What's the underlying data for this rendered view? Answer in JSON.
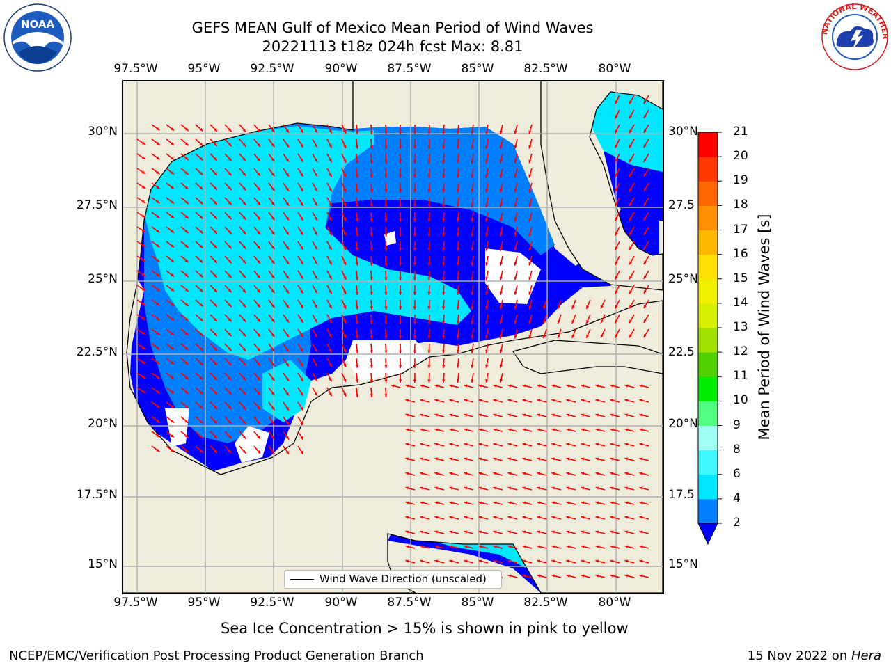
{
  "title": {
    "line1": "GEFS MEAN Gulf of Mexico Mean Period of Wind Waves",
    "line2": "20221113 t18z 024h fcst   Max: 8.81"
  },
  "map": {
    "lon_labels": [
      "97.5°W",
      "95°W",
      "92.5°W",
      "90°W",
      "87.5°W",
      "85°W",
      "82.5°W",
      "80°W"
    ],
    "lat_labels": [
      "30°N",
      "27.5°N",
      "25°N",
      "22.5°N",
      "20°N",
      "17.5°N",
      "15°N"
    ],
    "lat_labels_right": [
      "30°N",
      "27.5",
      "25°N",
      "22.5",
      "20°N",
      "17.5",
      "15°N"
    ],
    "lon_range": [
      -98,
      -78.3
    ],
    "lat_range": [
      14,
      31.7
    ],
    "land_color": "#efecdc",
    "grid_color": "#b0b0b0",
    "arrow_color": "#ff0000",
    "legend_label": "Wind Wave Direction (unscaled)"
  },
  "colorbar": {
    "label": "Mean Period of Wind Waves [s]",
    "ticks": [
      "2",
      "4",
      "6",
      "8",
      "9",
      "10",
      "11",
      "12",
      "13",
      "14",
      "15",
      "16",
      "17",
      "18",
      "19",
      "20",
      "21"
    ],
    "colors": [
      "#0000ff",
      "#0080ff",
      "#00e8ff",
      "#40f8ff",
      "#9ffff0",
      "#50ff80",
      "#00ef00",
      "#50d000",
      "#a0e000",
      "#d8f000",
      "#f0f000",
      "#ffe000",
      "#ffb800",
      "#ff9000",
      "#ff6800",
      "#ff3800",
      "#ff0000"
    ],
    "extend_color": "#0000ff"
  },
  "note": "Sea Ice Concentration > 15% is shown in pink to yellow",
  "footer": {
    "left": "NCEP/EMC/Verification Post Processing Product Generation Branch",
    "date": "15 Nov 2022 on ",
    "machine": "Hera"
  },
  "logos": {
    "noaa": "NOAA",
    "nws_ring": "NATIONAL WEATHER SERVICE"
  }
}
